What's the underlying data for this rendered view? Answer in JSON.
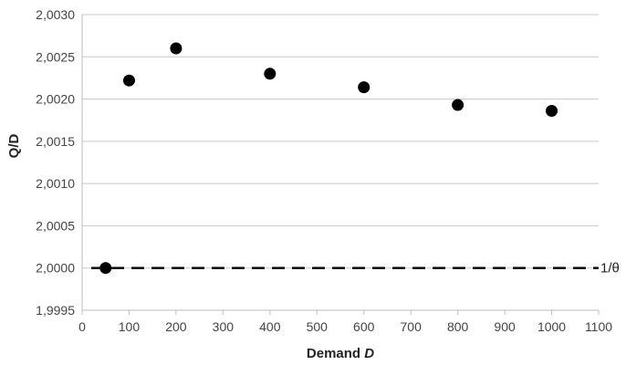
{
  "chart_data": {
    "type": "scatter",
    "xlabel_prefix": "Demand ",
    "xlabel_var": "D",
    "ylabel": "Q/D",
    "xlim": [
      0,
      1100
    ],
    "ylim": [
      1.9995,
      2.003
    ],
    "x_ticks": [
      0,
      100,
      200,
      300,
      400,
      500,
      600,
      700,
      800,
      900,
      1000,
      1100
    ],
    "x_tick_labels": [
      "0",
      "100",
      "200",
      "300",
      "400",
      "500",
      "600",
      "700",
      "800",
      "900",
      "1000",
      "1100"
    ],
    "y_ticks": [
      1.9995,
      2.0,
      2.0005,
      2.001,
      2.0015,
      2.002,
      2.0025,
      2.003
    ],
    "y_tick_labels": [
      "1,9995",
      "2,0000",
      "2,0005",
      "2,0010",
      "2,0015",
      "2,0020",
      "2,0025",
      "2,0030"
    ],
    "grid": "horizontal",
    "series": [
      {
        "points": [
          {
            "x": 50,
            "y": 2.0
          },
          {
            "x": 100,
            "y": 2.00222
          },
          {
            "x": 200,
            "y": 2.0026
          },
          {
            "x": 400,
            "y": 2.0023
          },
          {
            "x": 600,
            "y": 2.00214
          },
          {
            "x": 800,
            "y": 2.00193
          },
          {
            "x": 1000,
            "y": 2.00186
          }
        ],
        "color": "#000000"
      }
    ],
    "reference_line": {
      "y": 2.0,
      "label": "1/θ",
      "style": "dashed",
      "color": "#000000"
    }
  }
}
